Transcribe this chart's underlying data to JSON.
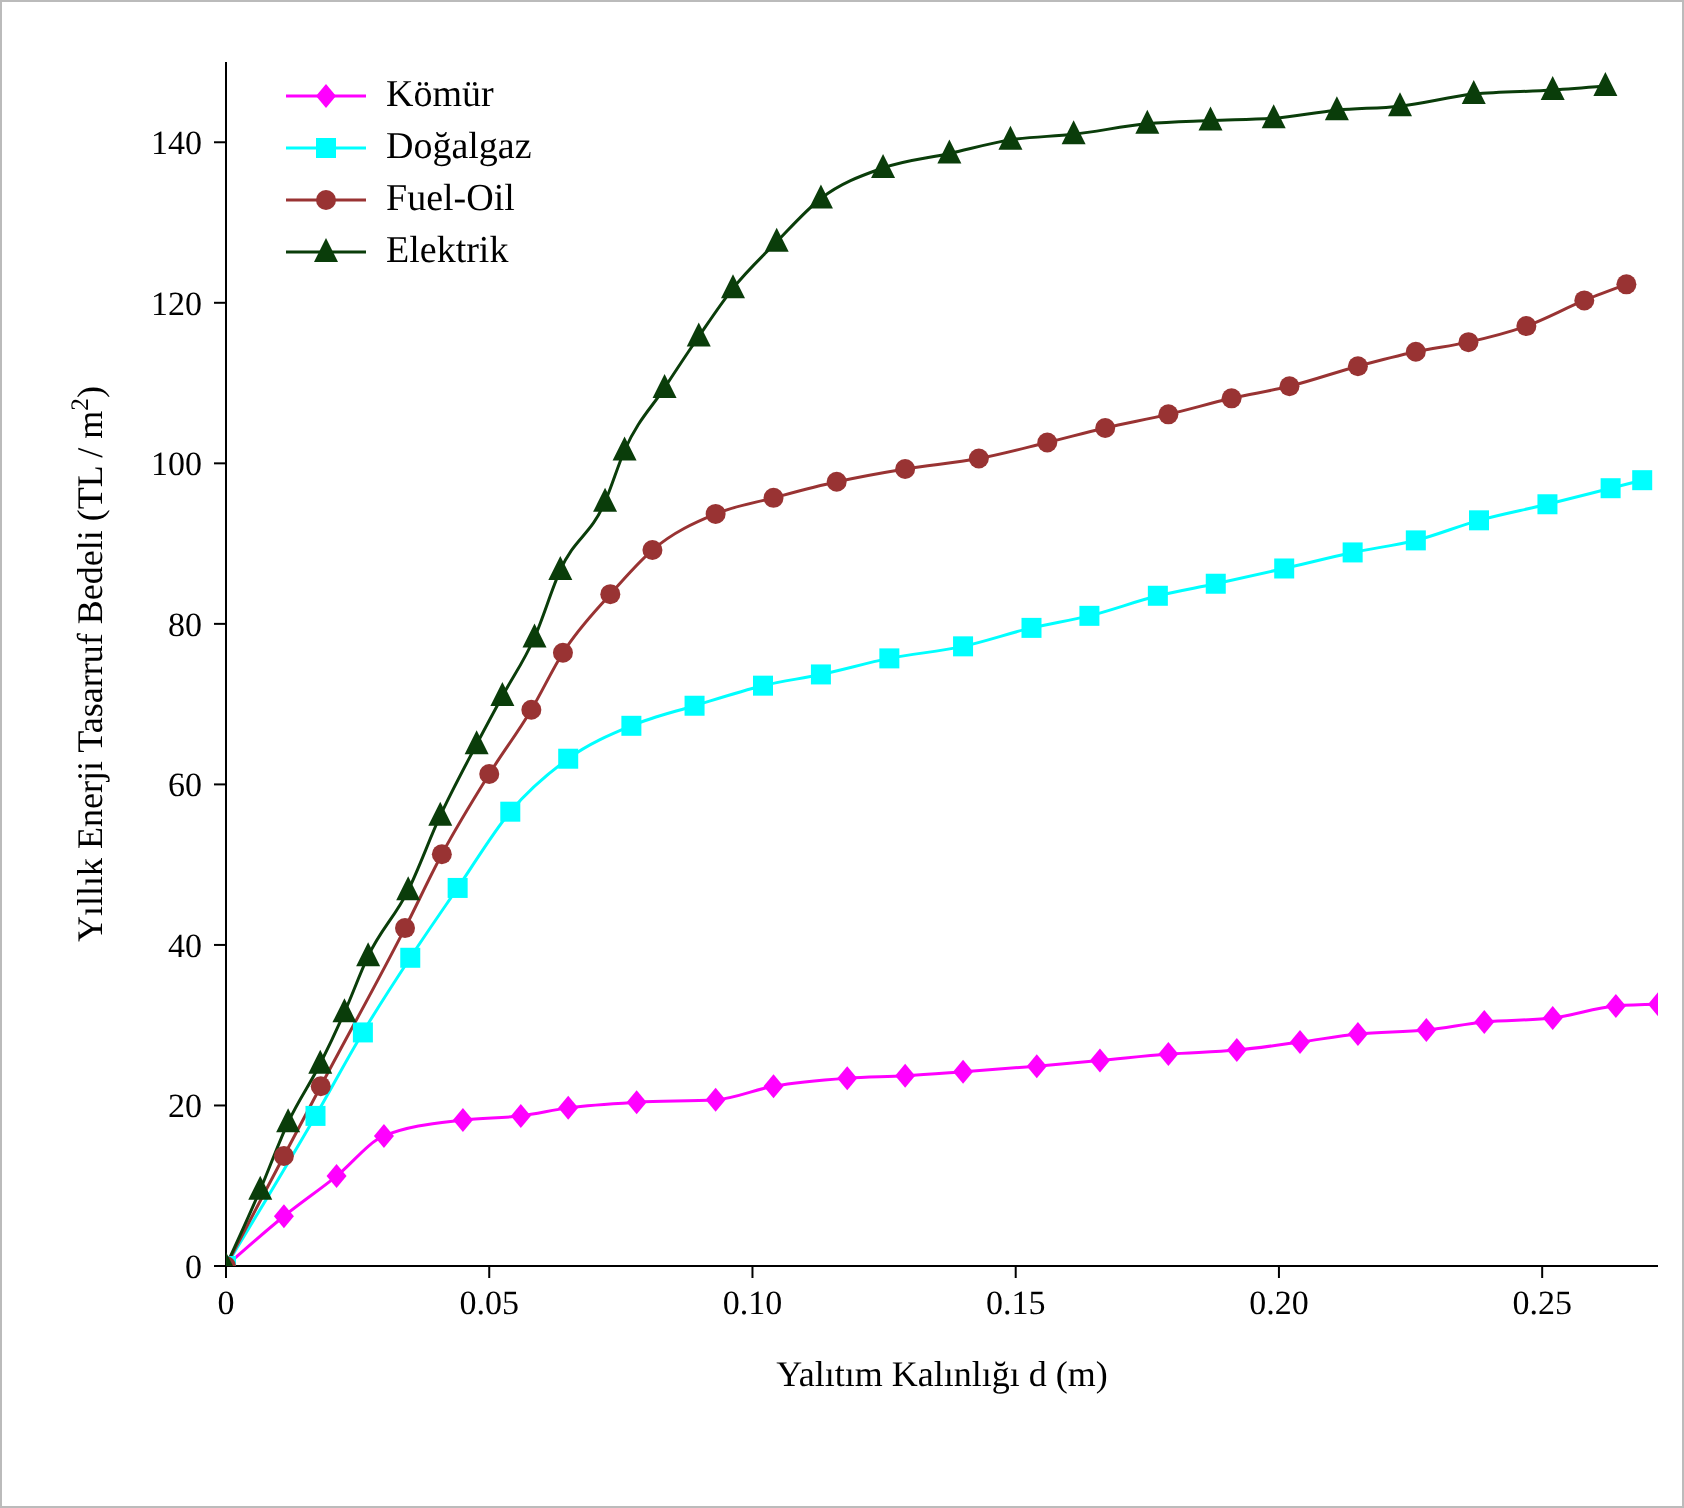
{
  "chart_data": {
    "type": "line",
    "xlabel": "Yalıtım Kalınlığı d (m)",
    "ylabel": "Yıllık Enerji Tasarruf Bedeli (TL / m$^{2}$)",
    "xlim": [
      0,
      0.272
    ],
    "ylim": [
      0,
      150
    ],
    "xticks": [
      0,
      {
        "value": 0.05,
        "label": "0.05"
      },
      {
        "value": 0.1,
        "label": "0.10"
      },
      {
        "value": 0.15,
        "label": "0.15"
      },
      {
        "value": 0.2,
        "label": "0.20"
      },
      {
        "value": 0.25,
        "label": "0.25"
      }
    ],
    "yticks": [
      0,
      20,
      40,
      60,
      80,
      100,
      120,
      140
    ],
    "grid": false,
    "legend": "top left",
    "series": [
      {
        "name": "Kömür",
        "color": "#ff00ff",
        "marker": "diamond",
        "x": [
          0,
          0.011,
          0.021,
          0.03,
          0.045,
          0.056,
          0.065,
          0.078,
          0.093,
          0.104,
          0.118,
          0.129,
          0.14,
          0.154,
          0.166,
          0.179,
          0.192,
          0.204,
          0.215,
          0.228,
          0.239,
          0.252,
          0.264,
          0.272
        ],
        "values": [
          0,
          6.2,
          11.2,
          16.2,
          18.2,
          18.7,
          19.7,
          20.4,
          20.7,
          22.4,
          23.4,
          23.7,
          24.2,
          24.9,
          25.6,
          26.4,
          26.9,
          27.9,
          28.9,
          29.4,
          30.4,
          30.9,
          32.4,
          32.6
        ]
      },
      {
        "name": "Doğalgaz",
        "color": "#00ffff",
        "marker": "square",
        "x": [
          0,
          0.017,
          0.026,
          0.035,
          0.044,
          0.054,
          0.065,
          0.077,
          0.089,
          0.102,
          0.113,
          0.126,
          0.14,
          0.153,
          0.164,
          0.177,
          0.188,
          0.201,
          0.214,
          0.226,
          0.238,
          0.251,
          0.263,
          0.269
        ],
        "values": [
          0,
          18.7,
          29.1,
          38.4,
          47.1,
          56.6,
          63.2,
          67.3,
          69.8,
          72.3,
          73.7,
          75.7,
          77.2,
          79.5,
          81,
          83.5,
          85,
          86.9,
          88.9,
          90.4,
          92.9,
          94.9,
          96.9,
          97.9
        ]
      },
      {
        "name": "Fuel-Oil",
        "color": "#993333",
        "marker": "circle",
        "x": [
          0,
          0.011,
          0.018,
          0.034,
          0.041,
          0.05,
          0.058,
          0.064,
          0.073,
          0.081,
          0.093,
          0.104,
          0.116,
          0.129,
          0.143,
          0.156,
          0.167,
          0.179,
          0.191,
          0.202,
          0.215,
          0.226,
          0.236,
          0.247,
          0.258,
          0.266
        ],
        "values": [
          0,
          13.7,
          22.4,
          42.1,
          51.3,
          61.3,
          69.3,
          76.4,
          83.7,
          89.2,
          93.7,
          95.7,
          97.7,
          99.3,
          100.6,
          102.6,
          104.4,
          106.1,
          108.1,
          109.6,
          112.1,
          113.9,
          115.1,
          117.1,
          120.3,
          122.3
        ]
      },
      {
        "name": "Elektrik",
        "color": "#0a3d0a",
        "marker": "triangle",
        "x": [
          0,
          0.0065,
          0.0118,
          0.0179,
          0.0225,
          0.027,
          0.0346,
          0.0407,
          0.0476,
          0.0525,
          0.0586,
          0.0635,
          0.072,
          0.0757,
          0.0833,
          0.0898,
          0.0963,
          0.1046,
          0.113,
          0.1248,
          0.1374,
          0.149,
          0.161,
          0.175,
          0.187,
          0.199,
          0.211,
          0.223,
          0.237,
          0.252,
          0.262
        ],
        "values": [
          0,
          9.5,
          17.9,
          25.2,
          31.6,
          38.6,
          46.8,
          56.1,
          65,
          71,
          78.3,
          86.7,
          95.2,
          101.6,
          109.4,
          115.8,
          121.8,
          127.6,
          133,
          136.8,
          138.6,
          140.3,
          141,
          142.3,
          142.7,
          143,
          144,
          144.5,
          146,
          146.5,
          147
        ]
      }
    ]
  }
}
